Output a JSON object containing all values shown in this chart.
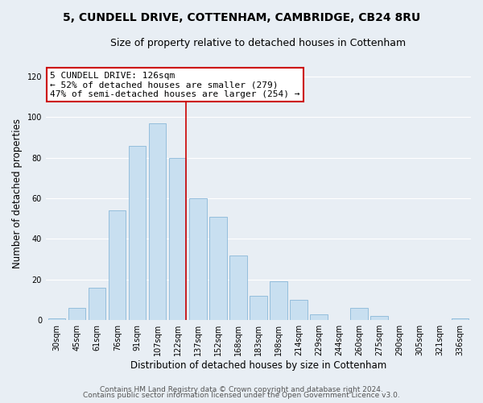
{
  "title_line1": "5, CUNDELL DRIVE, COTTENHAM, CAMBRIDGE, CB24 8RU",
  "title_line2": "Size of property relative to detached houses in Cottenham",
  "xlabel": "Distribution of detached houses by size in Cottenham",
  "ylabel": "Number of detached properties",
  "bar_labels": [
    "30sqm",
    "45sqm",
    "61sqm",
    "76sqm",
    "91sqm",
    "107sqm",
    "122sqm",
    "137sqm",
    "152sqm",
    "168sqm",
    "183sqm",
    "198sqm",
    "214sqm",
    "229sqm",
    "244sqm",
    "260sqm",
    "275sqm",
    "290sqm",
    "305sqm",
    "321sqm",
    "336sqm"
  ],
  "bar_values": [
    1,
    6,
    16,
    54,
    86,
    97,
    80,
    60,
    51,
    32,
    12,
    19,
    10,
    3,
    0,
    6,
    2,
    0,
    0,
    0,
    1
  ],
  "bar_color": "#c8dff0",
  "bar_edge_color": "#8ab8d8",
  "highlight_bar_index": 6,
  "highlight_line_color": "#cc0000",
  "annotation_line1": "5 CUNDELL DRIVE: 126sqm",
  "annotation_line2": "← 52% of detached houses are smaller (279)",
  "annotation_line3": "47% of semi-detached houses are larger (254) →",
  "annotation_box_color": "#ffffff",
  "annotation_box_edge": "#cc0000",
  "ylim": [
    0,
    125
  ],
  "yticks": [
    0,
    20,
    40,
    60,
    80,
    100,
    120
  ],
  "footer_line1": "Contains HM Land Registry data © Crown copyright and database right 2024.",
  "footer_line2": "Contains public sector information licensed under the Open Government Licence v3.0.",
  "background_color": "#e8eef4",
  "grid_color": "#ffffff",
  "title_fontsize": 10,
  "subtitle_fontsize": 9,
  "axis_label_fontsize": 8.5,
  "tick_fontsize": 7,
  "annotation_fontsize": 8,
  "footer_fontsize": 6.5
}
